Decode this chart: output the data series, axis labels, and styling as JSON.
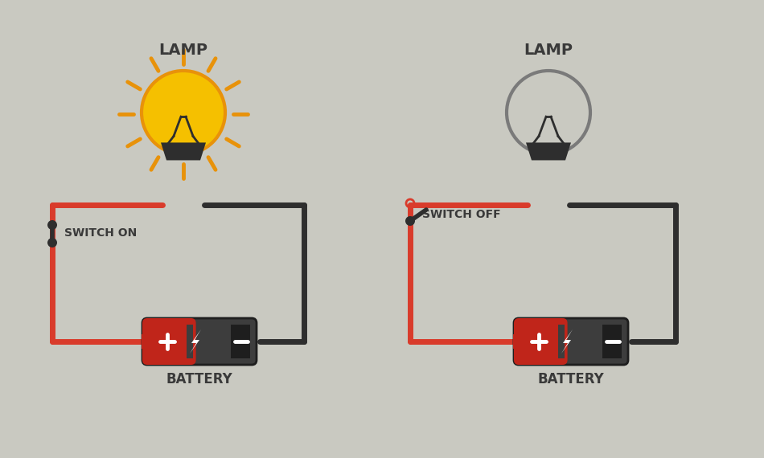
{
  "bg_color": "#c9c9c1",
  "wire_lw": 5.0,
  "red_color": "#d93b2b",
  "dark_color": "#2e2e2e",
  "lamp_on_fill": "#f5c000",
  "lamp_on_outline": "#e8920a",
  "lamp_off_fill": "#c9c9c1",
  "lamp_off_outline": "#7a7a7a",
  "battery_red": "#c0251a",
  "battery_dark": "#3d3d3d",
  "battery_darker": "#1e1e1e",
  "text_color": "#3a3a3a",
  "label_fontsize": 12,
  "switch_label_fontsize": 10,
  "title1": "LAMP",
  "title2": "LAMP",
  "switch_on_label": "SWITCH ON",
  "switch_off_label": "SWITCH OFF",
  "battery_label": "BATTERY"
}
